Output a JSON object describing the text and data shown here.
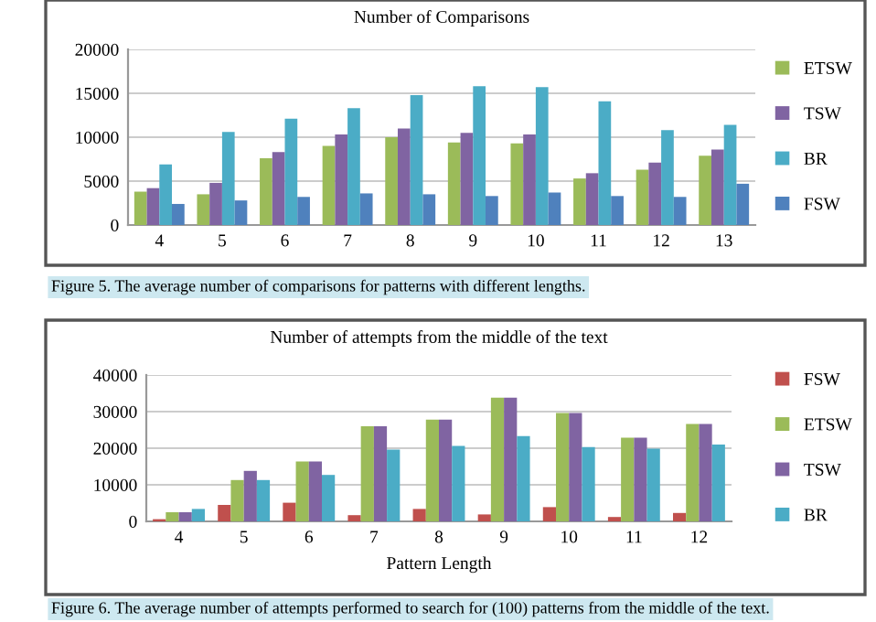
{
  "chart_data": [
    {
      "type": "bar",
      "title": "Number of Comparisons",
      "categories": [
        "4",
        "5",
        "6",
        "7",
        "8",
        "9",
        "10",
        "11",
        "12",
        "13"
      ],
      "series": [
        {
          "name": "ETSW",
          "color": "#9bbb59",
          "values": [
            3800,
            3500,
            7600,
            9000,
            10000,
            9400,
            9300,
            5300,
            6300,
            7900
          ]
        },
        {
          "name": "TSW",
          "color": "#8064a2",
          "values": [
            4200,
            4800,
            8300,
            10300,
            11000,
            10500,
            10300,
            5900,
            7100,
            8600
          ]
        },
        {
          "name": "BR",
          "color": "#4bacc6",
          "values": [
            6900,
            10600,
            12100,
            13300,
            14800,
            15800,
            15700,
            14100,
            10800,
            11400
          ]
        },
        {
          "name": "FSW",
          "color": "#4f81bd",
          "values": [
            2400,
            2800,
            3200,
            3600,
            3500,
            3300,
            3700,
            3300,
            3200,
            4700
          ]
        }
      ],
      "ylim": [
        0,
        20000
      ],
      "yticks": [
        0,
        5000,
        10000,
        15000,
        20000
      ],
      "grid": "y",
      "legend": "right",
      "annotations": [
        "Figure 5. The average number of comparisons for patterns with different lengths."
      ]
    },
    {
      "type": "bar",
      "title": "Number of attempts from the middle of the text",
      "xlabel": "Pattern Length",
      "categories": [
        "4",
        "5",
        "6",
        "7",
        "8",
        "9",
        "10",
        "11",
        "12"
      ],
      "series": [
        {
          "name": "FSW",
          "color": "#c0504d",
          "values": [
            600,
            4500,
            5100,
            1700,
            3400,
            1900,
            3900,
            1200,
            2300
          ]
        },
        {
          "name": "ETSW",
          "color": "#9bbb59",
          "values": [
            2500,
            11300,
            16400,
            26000,
            27800,
            33800,
            29600,
            22900,
            26600
          ]
        },
        {
          "name": "TSW",
          "color": "#8064a2",
          "values": [
            2500,
            13800,
            16400,
            26000,
            27800,
            33800,
            29600,
            22900,
            26600
          ]
        },
        {
          "name": "BR",
          "color": "#4bacc6",
          "values": [
            3400,
            11300,
            12700,
            19600,
            20600,
            23300,
            20300,
            19900,
            21000
          ]
        }
      ],
      "ylim": [
        0,
        40000
      ],
      "yticks": [
        0,
        10000,
        20000,
        30000,
        40000
      ],
      "grid": "y",
      "legend": "right",
      "annotations": [
        "Figure 6. The average number of attempts performed to search for (100) patterns from the middle of the text."
      ]
    }
  ]
}
